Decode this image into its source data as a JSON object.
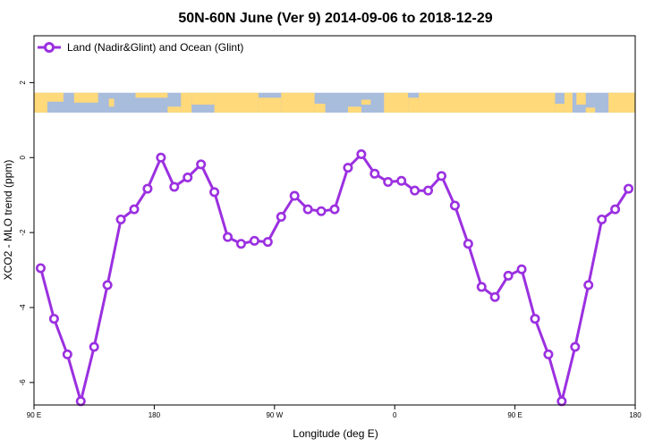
{
  "chart_data": {
    "type": "line",
    "title": "50N-60N June (Ver 9)   2014-09-06 to 2018-12-29",
    "xlabel": "Longitude (deg E)",
    "ylabel": "XCO2 - MLO trend (ppm)",
    "xlim": [
      90,
      540
    ],
    "ylim": [
      -6.6,
      3.25
    ],
    "x_ticks": [
      {
        "value": 90,
        "label": "90 E"
      },
      {
        "value": 180,
        "label": "180"
      },
      {
        "value": 270,
        "label": "90 W"
      },
      {
        "value": 360,
        "label": "0"
      },
      {
        "value": 450,
        "label": "90 E"
      },
      {
        "value": 540,
        "label": "180"
      }
    ],
    "y_ticks": [
      {
        "value": -6,
        "label": "-6"
      },
      {
        "value": -4,
        "label": "-4"
      },
      {
        "value": -2,
        "label": "-2"
      },
      {
        "value": 0,
        "label": "0"
      },
      {
        "value": 2,
        "label": "2"
      }
    ],
    "legend": {
      "position": "top-left",
      "entries": [
        "Land (Nadir&Glint) and Ocean (Glint)"
      ]
    },
    "map_strip": {
      "y_range": [
        1.2,
        1.73
      ],
      "ocean_color": "#A8BCDC",
      "land_color": "#FFD97A"
    },
    "series": [
      {
        "name": "Land (Nadir&Glint) and Ocean (Glint)",
        "color": "#9B30E0",
        "x": [
          95,
          105,
          115,
          125,
          135,
          145,
          155,
          165,
          175,
          185,
          195,
          205,
          215,
          225,
          235,
          245,
          255,
          265,
          275,
          285,
          295,
          305,
          315,
          325,
          335,
          345,
          355,
          365,
          375,
          385,
          395,
          405,
          415,
          425,
          435,
          445,
          455,
          465,
          475,
          485,
          495,
          505,
          515,
          525,
          535
        ],
        "y": [
          -2.95,
          -4.3,
          -5.25,
          -6.5,
          -5.05,
          -3.4,
          -1.65,
          -1.38,
          -0.83,
          0.0,
          -0.78,
          -0.53,
          -0.18,
          -0.92,
          -2.12,
          -2.3,
          -2.22,
          -2.25,
          -1.58,
          -1.02,
          -1.38,
          -1.43,
          -1.38,
          -0.27,
          0.09,
          -0.43,
          -0.65,
          -0.62,
          -0.88,
          -0.88,
          -0.49,
          -1.28,
          -2.3,
          -3.45,
          -3.72,
          -3.15,
          -2.98,
          -4.3,
          -5.25,
          -6.5,
          -5.05,
          -3.4,
          -1.65,
          -1.38,
          -0.83
        ]
      }
    ]
  }
}
